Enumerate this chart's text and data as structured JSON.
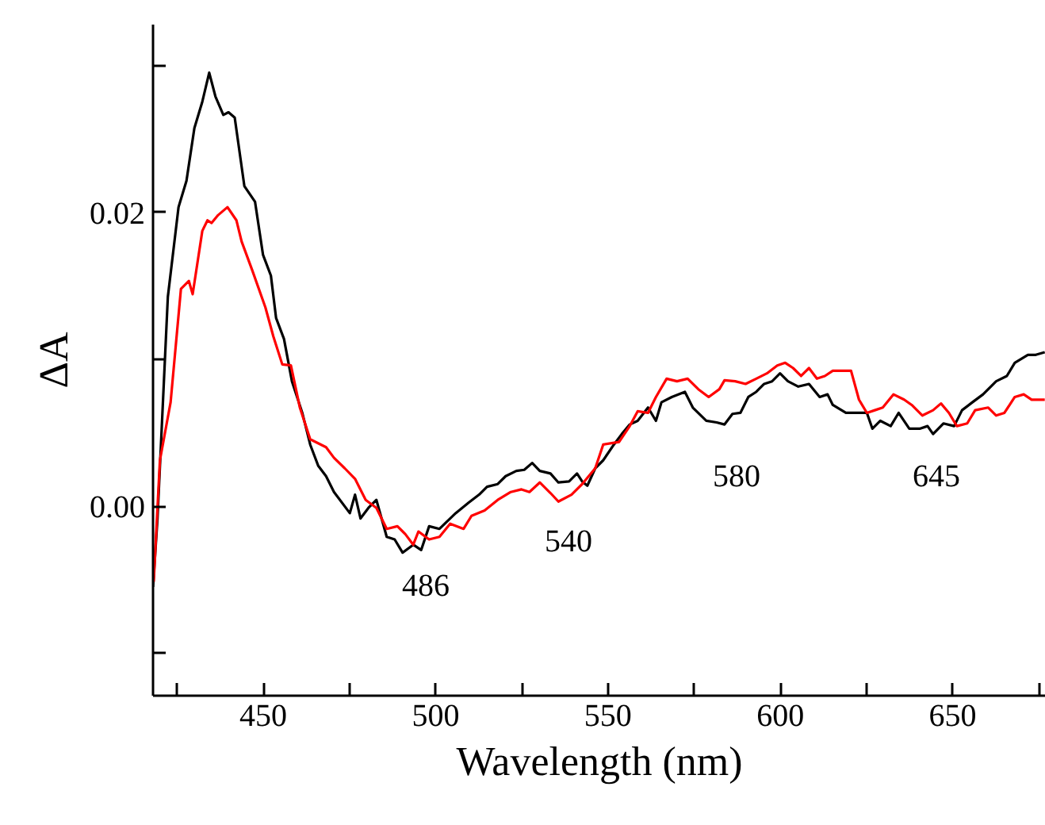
{
  "chart_data": {
    "type": "line",
    "xlabel": "Wavelength (nm)",
    "ylabel": "ΔA",
    "xlim": [
      418,
      677
    ],
    "ylim": [
      -0.0129,
      0.0328
    ],
    "xticks": [
      {
        "value": 425,
        "label": null
      },
      450,
      {
        "value": 475,
        "label": null
      },
      500,
      {
        "value": 525,
        "label": null
      },
      550,
      {
        "value": 575,
        "label": null
      },
      600,
      {
        "value": 625,
        "label": null
      },
      650,
      {
        "value": 675,
        "label": null
      }
    ],
    "yticks": [
      {
        "value": -0.01,
        "label": null
      },
      {
        "value": 0.0,
        "label": "0.00"
      },
      {
        "value": 0.01,
        "label": null
      },
      {
        "value": 0.02,
        "label": "0.02"
      },
      {
        "value": 0.03,
        "label": null
      }
    ],
    "grid": false,
    "marker": "none",
    "line_style": "solid",
    "series": [
      {
        "color": "#000000",
        "x": [
          418,
          419.3,
          422.3,
          425.4,
          427.7,
          430,
          432.3,
          434.3,
          436.1,
          438.4,
          439.9,
          441.7,
          444.5,
          447.6,
          449.9,
          452.2,
          453.7,
          456,
          458.3,
          461.3,
          463.6,
          465.9,
          468.2,
          470.5,
          475.1,
          476.6,
          478.2,
          480.5,
          482.8,
          485.8,
          488.1,
          490.4,
          493.5,
          495.8,
          498.1,
          501.1,
          505.8,
          509.6,
          512.6,
          514.9,
          518,
          520.3,
          523.4,
          525.7,
          528,
          530.2,
          533.3,
          535.6,
          538.7,
          541,
          542.5,
          544,
          546.3,
          548.6,
          551.7,
          554,
          556.3,
          558.6,
          561.6,
          563.9,
          565.5,
          568.5,
          572.3,
          574.6,
          578.5,
          581.5,
          583.8,
          586.1,
          588.4,
          590.7,
          593,
          595.3,
          597.6,
          599.9,
          602.2,
          605.2,
          608.3,
          611.4,
          613.7,
          615.2,
          619,
          622.1,
          625.1,
          626.7,
          629,
          632,
          634.3,
          637.4,
          640.4,
          642.7,
          644.3,
          647.3,
          650.4,
          652.7,
          655.7,
          658.8,
          662.6,
          665.7,
          668,
          671.8,
          674.1,
          676.7
        ],
        "values": [
          -0.0055,
          -0.00083,
          0.01426,
          0.02037,
          0.02216,
          0.02575,
          0.02755,
          0.02953,
          0.02791,
          0.02665,
          0.02683,
          0.02647,
          0.0218,
          0.02073,
          0.01713,
          0.0157,
          0.01282,
          0.01139,
          0.00851,
          0.00636,
          0.0042,
          0.00277,
          0.00205,
          0.00097,
          -0.00047,
          0.00079,
          -0.00083,
          -0.00011,
          0.00043,
          -0.00208,
          -0.00226,
          -0.00316,
          -0.00262,
          -0.00298,
          -0.00136,
          -0.00154,
          -0.00047,
          0.00025,
          0.00079,
          0.00133,
          0.00151,
          0.00205,
          0.00241,
          0.00248,
          0.00295,
          0.00241,
          0.00223,
          0.00162,
          0.00169,
          0.00223,
          0.00169,
          0.0014,
          0.00259,
          0.00313,
          0.0042,
          0.00492,
          0.00557,
          0.00582,
          0.00672,
          0.00582,
          0.00708,
          0.00744,
          0.00779,
          0.00672,
          0.00582,
          0.00571,
          0.00557,
          0.00629,
          0.00636,
          0.00744,
          0.00779,
          0.00833,
          0.00851,
          0.00905,
          0.00851,
          0.00815,
          0.00833,
          0.00744,
          0.00762,
          0.0069,
          0.00636,
          0.00636,
          0.00636,
          0.00528,
          0.00582,
          0.00546,
          0.00636,
          0.00528,
          0.00528,
          0.00546,
          0.00492,
          0.00564,
          0.00546,
          0.00654,
          0.00708,
          0.00762,
          0.00851,
          0.00887,
          0.00977,
          0.01031,
          0.01031,
          0.01049
        ]
      },
      {
        "color": "#ff0000",
        "x": [
          418.2,
          420,
          423.1,
          426.1,
          428.4,
          429.5,
          432.3,
          433.8,
          435,
          436.9,
          439.6,
          442.2,
          443.7,
          446.8,
          450.6,
          452.9,
          455.5,
          458,
          460.6,
          463.6,
          466.7,
          468.2,
          470.5,
          473.6,
          476.6,
          479.7,
          482.8,
          485.8,
          488.9,
          491.2,
          493.5,
          495,
          498.1,
          501.1,
          504.2,
          508.1,
          510.4,
          514.2,
          518,
          521.8,
          524.9,
          527.2,
          530.2,
          533.3,
          535.6,
          539.4,
          542.5,
          546.3,
          548.6,
          553.2,
          556.3,
          558.6,
          561.6,
          563.9,
          567,
          570,
          573.1,
          576.2,
          579.2,
          582.3,
          583.8,
          586.9,
          589.9,
          593,
          596.1,
          599.1,
          601.4,
          603.7,
          606,
          608.3,
          610.6,
          612.9,
          615.2,
          618.3,
          620.5,
          622.8,
          625.1,
          627.4,
          629.7,
          632.8,
          635.9,
          638.1,
          641.2,
          644.3,
          646.6,
          648.9,
          651.2,
          654.2,
          656.5,
          660.3,
          662.6,
          665,
          668,
          670.6,
          672.9,
          676.7
        ],
        "values": [
          -0.00514,
          0.00313,
          0.00708,
          0.0148,
          0.01534,
          0.01444,
          0.01875,
          0.01947,
          0.01929,
          0.01983,
          0.02037,
          0.01947,
          0.01803,
          0.01606,
          0.01354,
          0.01157,
          0.00966,
          0.00959,
          0.00672,
          0.00456,
          0.0042,
          0.00402,
          0.0033,
          0.00259,
          0.00187,
          0.00043,
          -0.00011,
          -0.00154,
          -0.00136,
          -0.0019,
          -0.00262,
          -0.00172,
          -0.00226,
          -0.00208,
          -0.00119,
          -0.00154,
          -0.00065,
          -0.00029,
          0.00043,
          0.00097,
          0.00115,
          0.00097,
          0.00162,
          0.0009,
          0.00032,
          0.00079,
          0.00151,
          0.00259,
          0.0042,
          0.00438,
          0.00546,
          0.00647,
          0.00636,
          0.00744,
          0.00869,
          0.00851,
          0.00869,
          0.00797,
          0.00744,
          0.00797,
          0.00858,
          0.00851,
          0.00833,
          0.00869,
          0.00905,
          0.00959,
          0.00977,
          0.00941,
          0.00887,
          0.00941,
          0.00869,
          0.00887,
          0.00923,
          0.00923,
          0.00923,
          0.00726,
          0.00636,
          0.00654,
          0.00672,
          0.00762,
          0.00726,
          0.0069,
          0.00618,
          0.00654,
          0.007,
          0.00636,
          0.00546,
          0.00564,
          0.00654,
          0.00672,
          0.00618,
          0.00636,
          0.00744,
          0.00762,
          0.00726,
          0.00726
        ]
      }
    ],
    "annotations": [
      "486",
      "540",
      "580",
      "645"
    ]
  }
}
